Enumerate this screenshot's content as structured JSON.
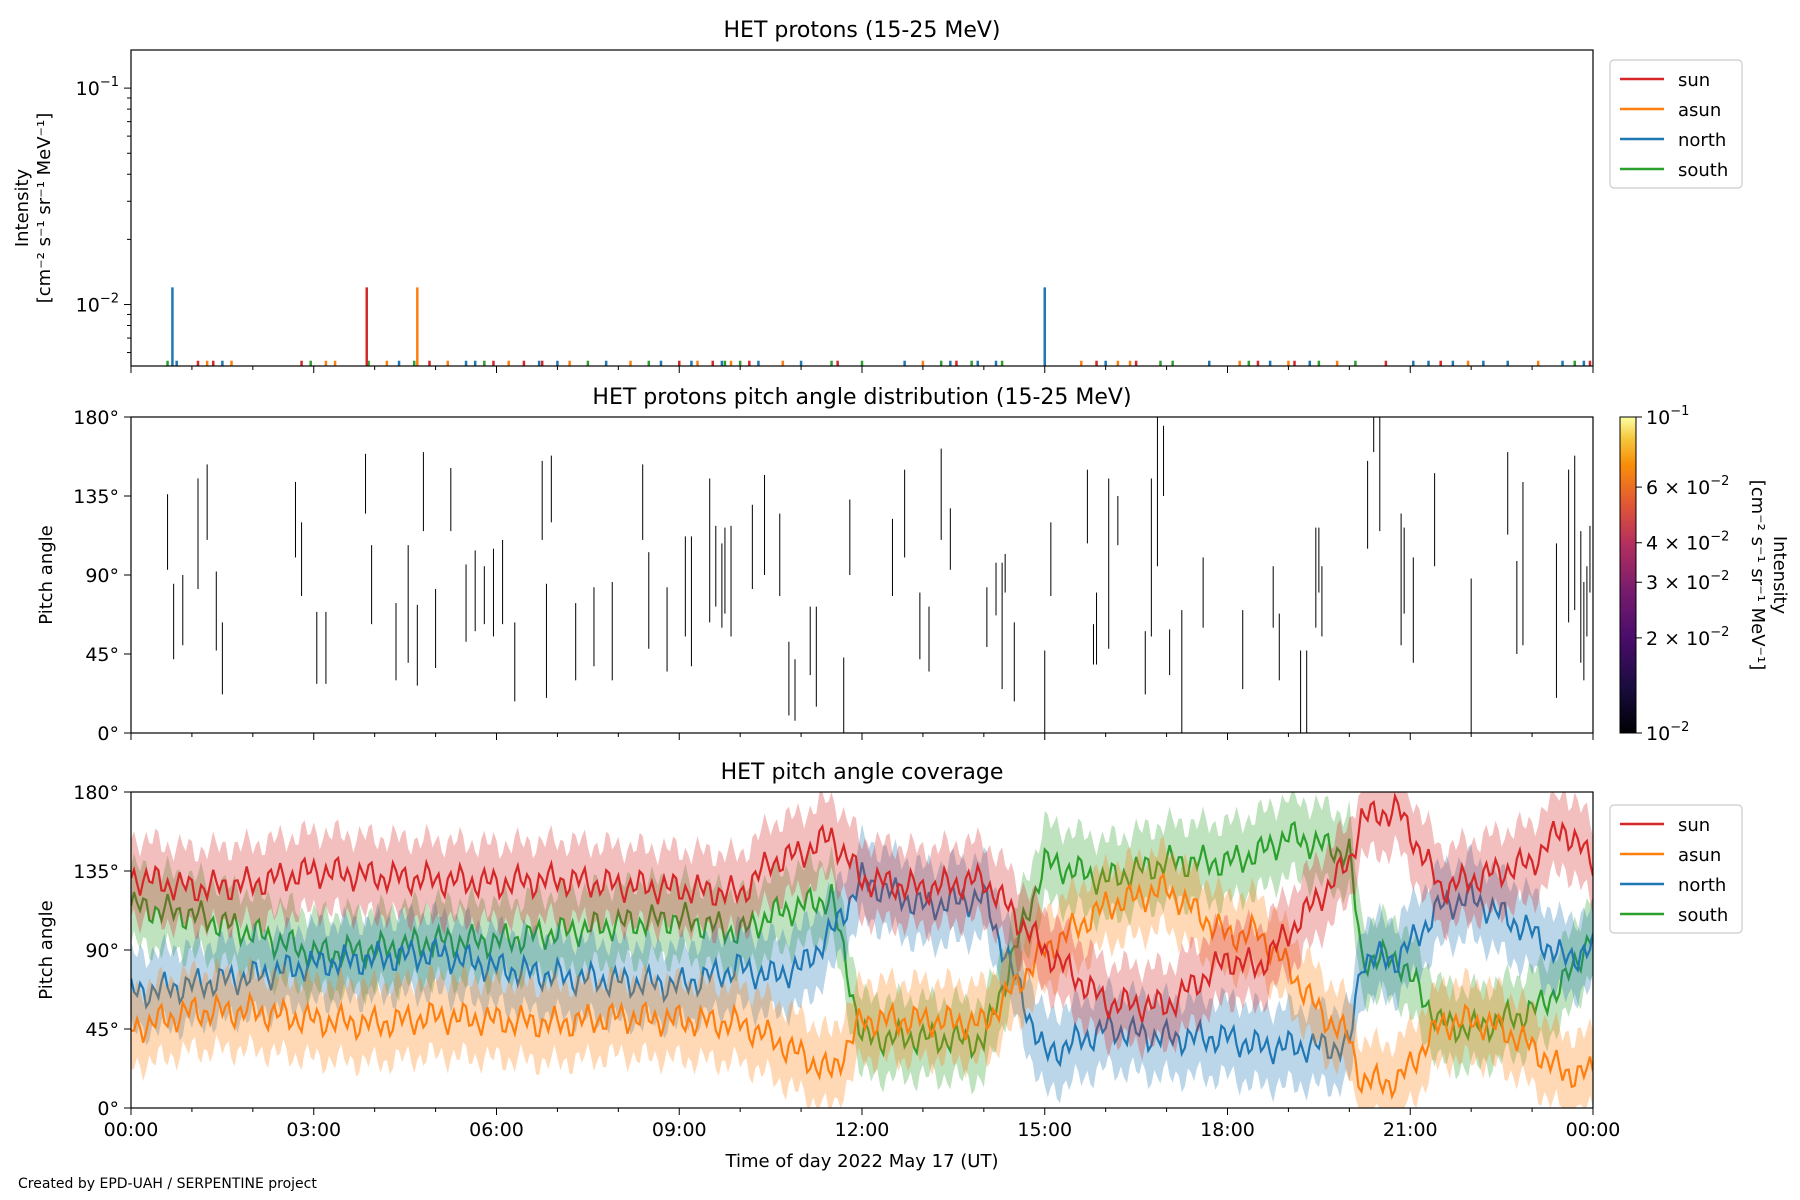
{
  "footer": "Created by EPD-UAH / SERPENTINE project",
  "chart_data": [
    {
      "type": "line",
      "title": "HET protons (15-25 MeV)",
      "ylabel": [
        "Intensity",
        "[cm⁻² s⁻¹ sr⁻¹ MeV⁻¹]"
      ],
      "yscale": "log",
      "ylim": [
        0.0052,
        0.15
      ],
      "yticks": [
        {
          "value": 0.1,
          "base": "10",
          "exp": "−1"
        },
        {
          "value": 0.01,
          "base": "10",
          "exp": "−2"
        }
      ],
      "xlim_hours": [
        0,
        24
      ],
      "legend": {
        "placement": "upper right outside",
        "entries": [
          {
            "name": "sun",
            "color": "#d62728"
          },
          {
            "name": "asun",
            "color": "#ff7f0e"
          },
          {
            "name": "north",
            "color": "#1f77b4"
          },
          {
            "name": "south",
            "color": "#2ca02c"
          }
        ]
      },
      "baseline": 0.0055,
      "spikes": [
        {
          "t": 0.68,
          "series": "north",
          "value": 0.012
        },
        {
          "t": 3.87,
          "series": "sun",
          "value": 0.012
        },
        {
          "t": 4.7,
          "series": "asun",
          "value": 0.012
        },
        {
          "t": 15.0,
          "series": "north",
          "value": 0.012
        }
      ],
      "events": [
        [
          0.6,
          "south"
        ],
        [
          0.75,
          "north"
        ],
        [
          1.1,
          "sun"
        ],
        [
          1.25,
          "asun"
        ],
        [
          1.35,
          "sun"
        ],
        [
          1.5,
          "north"
        ],
        [
          1.65,
          "asun"
        ],
        [
          2.8,
          "sun"
        ],
        [
          2.95,
          "south"
        ],
        [
          3.2,
          "asun"
        ],
        [
          3.35,
          "asun"
        ],
        [
          3.9,
          "south"
        ],
        [
          4.2,
          "asun"
        ],
        [
          4.4,
          "north"
        ],
        [
          4.65,
          "south"
        ],
        [
          4.9,
          "sun"
        ],
        [
          5.2,
          "asun"
        ],
        [
          5.5,
          "north"
        ],
        [
          5.65,
          "north"
        ],
        [
          5.8,
          "south"
        ],
        [
          5.95,
          "sun"
        ],
        [
          6.2,
          "asun"
        ],
        [
          6.45,
          "sun"
        ],
        [
          6.7,
          "north"
        ],
        [
          6.75,
          "sun"
        ],
        [
          7.0,
          "north"
        ],
        [
          7.2,
          "asun"
        ],
        [
          7.5,
          "south"
        ],
        [
          7.8,
          "north"
        ],
        [
          8.2,
          "asun"
        ],
        [
          8.5,
          "south"
        ],
        [
          8.7,
          "north"
        ],
        [
          9.0,
          "sun"
        ],
        [
          9.2,
          "north"
        ],
        [
          9.3,
          "asun"
        ],
        [
          9.55,
          "sun"
        ],
        [
          9.7,
          "north"
        ],
        [
          9.75,
          "south"
        ],
        [
          9.85,
          "asun"
        ],
        [
          10.0,
          "south"
        ],
        [
          10.15,
          "sun"
        ],
        [
          10.3,
          "north"
        ],
        [
          10.7,
          "asun"
        ],
        [
          11.0,
          "north"
        ],
        [
          11.5,
          "south"
        ],
        [
          11.6,
          "sun"
        ],
        [
          12.0,
          "south"
        ],
        [
          12.7,
          "north"
        ],
        [
          13.0,
          "asun"
        ],
        [
          13.3,
          "south"
        ],
        [
          13.45,
          "north"
        ],
        [
          13.55,
          "sun"
        ],
        [
          13.8,
          "south"
        ],
        [
          13.9,
          "north"
        ],
        [
          14.2,
          "north"
        ],
        [
          14.3,
          "south"
        ],
        [
          15.6,
          "asun"
        ],
        [
          15.85,
          "sun"
        ],
        [
          16.0,
          "north"
        ],
        [
          16.2,
          "asun"
        ],
        [
          16.4,
          "asun"
        ],
        [
          16.5,
          "sun"
        ],
        [
          16.9,
          "south"
        ],
        [
          17.1,
          "south"
        ],
        [
          17.7,
          "north"
        ],
        [
          18.2,
          "asun"
        ],
        [
          18.35,
          "south"
        ],
        [
          18.5,
          "sun"
        ],
        [
          18.7,
          "north"
        ],
        [
          19.0,
          "asun"
        ],
        [
          19.1,
          "sun"
        ],
        [
          19.35,
          "north"
        ],
        [
          19.5,
          "south"
        ],
        [
          19.8,
          "asun"
        ],
        [
          20.1,
          "south"
        ],
        [
          20.6,
          "sun"
        ],
        [
          21.05,
          "north"
        ],
        [
          21.3,
          "north"
        ],
        [
          21.5,
          "sun"
        ],
        [
          21.7,
          "north"
        ],
        [
          21.95,
          "asun"
        ],
        [
          22.2,
          "north"
        ],
        [
          22.6,
          "north"
        ],
        [
          23.1,
          "asun"
        ],
        [
          23.5,
          "north"
        ],
        [
          23.7,
          "south"
        ],
        [
          23.85,
          "north"
        ],
        [
          23.95,
          "sun"
        ]
      ]
    },
    {
      "type": "heatmap",
      "title": "HET protons pitch angle distribution (15-25 MeV)",
      "ylabel": "Pitch angle",
      "ylim": [
        0,
        180
      ],
      "yticks": [
        "0°",
        "45°",
        "90°",
        "135°",
        "180°"
      ],
      "xlim_hours": [
        0,
        24
      ],
      "colorbar": {
        "label": [
          "Intensity",
          "[cm⁻² s⁻¹ sr⁻¹ MeV⁻¹]"
        ],
        "scale": "log",
        "range": [
          0.01,
          0.1
        ],
        "ticks": [
          {
            "value": 0.1,
            "label": "10",
            "exp": "−1"
          },
          {
            "value": 0.06,
            "label": "6 × 10",
            "exp": "−2"
          },
          {
            "value": 0.04,
            "label": "4 × 10",
            "exp": "−2"
          },
          {
            "value": 0.03,
            "label": "3 × 10",
            "exp": "−2"
          },
          {
            "value": 0.02,
            "label": "2 × 10",
            "exp": "−2"
          },
          {
            "value": 0.01,
            "label": "10",
            "exp": "−2"
          }
        ],
        "colormap": "inferno"
      },
      "segments": [
        [
          0.6,
          93,
          136
        ],
        [
          0.7,
          42,
          85
        ],
        [
          0.85,
          50,
          90
        ],
        [
          1.1,
          82,
          145
        ],
        [
          1.25,
          110,
          153
        ],
        [
          1.4,
          47,
          92
        ],
        [
          1.5,
          22,
          63
        ],
        [
          2.7,
          100,
          143
        ],
        [
          2.8,
          78,
          120
        ],
        [
          3.05,
          28,
          69
        ],
        [
          3.2,
          28,
          69
        ],
        [
          3.85,
          125,
          159
        ],
        [
          3.95,
          62,
          107
        ],
        [
          4.35,
          30,
          74
        ],
        [
          4.55,
          40,
          107
        ],
        [
          4.7,
          27,
          73
        ],
        [
          4.8,
          115,
          160
        ],
        [
          5.0,
          37,
          82
        ],
        [
          5.25,
          115,
          151
        ],
        [
          5.5,
          52,
          96
        ],
        [
          5.65,
          58,
          104
        ],
        [
          5.8,
          62,
          95
        ],
        [
          5.95,
          55,
          105
        ],
        [
          6.1,
          62,
          110
        ],
        [
          6.3,
          18,
          63
        ],
        [
          6.75,
          110,
          155
        ],
        [
          6.82,
          20,
          85
        ],
        [
          6.9,
          120,
          158
        ],
        [
          7.3,
          30,
          74
        ],
        [
          7.6,
          38,
          83
        ],
        [
          7.9,
          30,
          86
        ],
        [
          8.4,
          110,
          153
        ],
        [
          8.5,
          48,
          103
        ],
        [
          8.8,
          35,
          83
        ],
        [
          9.1,
          55,
          112
        ],
        [
          9.2,
          38,
          112
        ],
        [
          9.5,
          63,
          145
        ],
        [
          9.6,
          72,
          118
        ],
        [
          9.7,
          60,
          108
        ],
        [
          9.75,
          68,
          117
        ],
        [
          9.85,
          55,
          118
        ],
        [
          10.2,
          82,
          130
        ],
        [
          10.4,
          90,
          147
        ],
        [
          10.65,
          78,
          125
        ],
        [
          10.8,
          10,
          52
        ],
        [
          10.9,
          7,
          42
        ],
        [
          11.15,
          33,
          72
        ],
        [
          11.25,
          15,
          72
        ],
        [
          11.7,
          0,
          43
        ],
        [
          11.8,
          90,
          133
        ],
        [
          12.5,
          78,
          122
        ],
        [
          12.7,
          100,
          150
        ],
        [
          12.95,
          42,
          80
        ],
        [
          13.1,
          35,
          72
        ],
        [
          13.3,
          110,
          162
        ],
        [
          13.45,
          93,
          128
        ],
        [
          14.05,
          49,
          83
        ],
        [
          14.2,
          67,
          97
        ],
        [
          14.3,
          25,
          97
        ],
        [
          14.35,
          80,
          102
        ],
        [
          14.5,
          18,
          63
        ],
        [
          15.0,
          0,
          47
        ],
        [
          15.1,
          78,
          120
        ],
        [
          15.7,
          108,
          150
        ],
        [
          15.8,
          39,
          62
        ],
        [
          15.85,
          39,
          80
        ],
        [
          16.05,
          48,
          145
        ],
        [
          16.2,
          107,
          135
        ],
        [
          16.65,
          22,
          58
        ],
        [
          16.75,
          55,
          145
        ],
        [
          16.85,
          95,
          180
        ],
        [
          16.95,
          135,
          175
        ],
        [
          17.05,
          33,
          59
        ],
        [
          17.25,
          0,
          70
        ],
        [
          17.6,
          60,
          100
        ],
        [
          18.25,
          25,
          70
        ],
        [
          18.75,
          60,
          95
        ],
        [
          18.85,
          30,
          68
        ],
        [
          19.2,
          0,
          47
        ],
        [
          19.3,
          0,
          47
        ],
        [
          19.45,
          60,
          117
        ],
        [
          19.5,
          80,
          117
        ],
        [
          19.55,
          55,
          95
        ],
        [
          20.3,
          105,
          155
        ],
        [
          20.4,
          160,
          180
        ],
        [
          20.5,
          115,
          180
        ],
        [
          20.85,
          50,
          125
        ],
        [
          20.9,
          68,
          117
        ],
        [
          21.05,
          40,
          100
        ],
        [
          21.4,
          95,
          148
        ],
        [
          22.0,
          0,
          88
        ],
        [
          22.6,
          113,
          160
        ],
        [
          22.75,
          45,
          98
        ],
        [
          22.85,
          50,
          143
        ],
        [
          23.4,
          20,
          108
        ],
        [
          23.6,
          63,
          150
        ],
        [
          23.7,
          70,
          158
        ],
        [
          23.8,
          40,
          115
        ],
        [
          23.85,
          30,
          86
        ],
        [
          23.9,
          55,
          95
        ],
        [
          23.95,
          80,
          118
        ]
      ]
    },
    {
      "type": "area",
      "title": "HET pitch angle coverage",
      "xlabel": "Time of day 2022 May 17 (UT)",
      "ylabel": "Pitch angle",
      "ylim": [
        0,
        180
      ],
      "yticks": [
        "0°",
        "45°",
        "90°",
        "135°",
        "180°"
      ],
      "xticks": [
        "00:00",
        "03:00",
        "06:00",
        "09:00",
        "12:00",
        "15:00",
        "18:00",
        "21:00",
        "00:00"
      ],
      "xlim_hours": [
        0,
        24
      ],
      "legend": {
        "placement": "upper right outside",
        "entries": [
          {
            "name": "sun",
            "color": "#d62728"
          },
          {
            "name": "asun",
            "color": "#ff7f0e"
          },
          {
            "name": "north",
            "color": "#1f77b4"
          },
          {
            "name": "south",
            "color": "#2ca02c"
          }
        ]
      },
      "band_halfwidth": 22,
      "series": [
        {
          "name": "sun",
          "t": [
            0,
            1,
            2,
            3,
            4,
            5,
            6,
            7,
            8,
            9,
            10,
            10.5,
            11,
            11.5,
            12,
            13,
            14,
            15,
            16,
            17,
            18,
            18.5,
            19,
            19.5,
            20,
            20.2,
            20.8,
            21.5,
            22,
            22.5,
            23,
            23.5,
            24
          ],
          "pa": [
            132,
            125,
            128,
            135,
            132,
            130,
            128,
            130,
            127,
            125,
            122,
            140,
            145,
            155,
            130,
            125,
            130,
            90,
            60,
            58,
            85,
            80,
            100,
            120,
            140,
            165,
            170,
            125,
            130,
            135,
            140,
            160,
            140
          ]
        },
        {
          "name": "asun",
          "t": [
            0,
            1,
            2,
            3,
            4,
            5,
            6,
            7,
            8,
            9,
            10,
            10.5,
            11,
            11.5,
            12,
            13,
            14,
            15,
            16,
            17,
            18,
            18.5,
            19,
            19.5,
            20,
            20.2,
            20.8,
            21.5,
            22,
            22.5,
            23,
            23.5,
            24
          ],
          "pa": [
            45,
            55,
            55,
            50,
            48,
            52,
            50,
            48,
            52,
            50,
            48,
            40,
            30,
            20,
            50,
            50,
            48,
            90,
            115,
            125,
            98,
            100,
            80,
            55,
            40,
            15,
            15,
            48,
            50,
            45,
            35,
            20,
            20
          ]
        },
        {
          "name": "north",
          "t": [
            0,
            1,
            2,
            3,
            4,
            5,
            6,
            7,
            8,
            9,
            10,
            10.5,
            11,
            11.5,
            12,
            13,
            14,
            15,
            16,
            17,
            18,
            18.5,
            19,
            19.5,
            20,
            20.2,
            20.8,
            21.5,
            22,
            22.5,
            23,
            23.5,
            24
          ],
          "pa": [
            65,
            70,
            75,
            82,
            85,
            88,
            80,
            75,
            72,
            70,
            80,
            75,
            80,
            100,
            130,
            115,
            120,
            30,
            45,
            40,
            40,
            35,
            35,
            35,
            35,
            85,
            85,
            115,
            120,
            110,
            100,
            85,
            90
          ]
        },
        {
          "name": "south",
          "t": [
            0,
            1,
            2,
            3,
            4,
            5,
            6,
            7,
            8,
            9,
            10,
            10.5,
            11,
            11.5,
            12,
            13,
            14,
            15,
            16,
            17,
            18,
            18.5,
            19,
            19.5,
            20,
            20.2,
            20.8,
            21.5,
            22,
            22.5,
            23,
            23.5,
            24
          ],
          "pa": [
            115,
            110,
            100,
            88,
            90,
            95,
            95,
            100,
            105,
            108,
            100,
            110,
            115,
            120,
            40,
            40,
            38,
            140,
            130,
            140,
            140,
            145,
            155,
            150,
            145,
            85,
            85,
            48,
            45,
            50,
            55,
            70,
            100
          ]
        }
      ]
    }
  ]
}
